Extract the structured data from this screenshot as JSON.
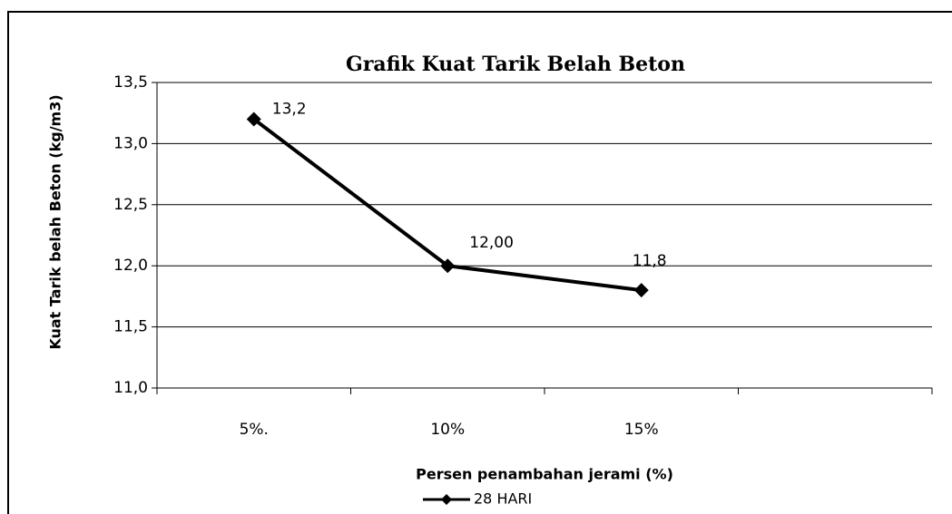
{
  "chart_data": {
    "type": "line",
    "title": "Grafik Kuat Tarik Belah Beton",
    "x_label": "Persen penambahan jerami (%)",
    "y_label": "Kuat Tarik belah Beton (kg/m3)",
    "categories": [
      "5%.",
      "10%",
      "15%",
      null
    ],
    "series": [
      {
        "name": "28 HARI",
        "color": "#000000",
        "values": [
          13.2,
          12.0,
          11.8,
          null
        ],
        "value_labels": [
          "13,2",
          "12,00",
          "11,8",
          null
        ]
      }
    ],
    "ylim": [
      11.0,
      13.5
    ],
    "yticks": [
      {
        "value": 11.0,
        "label": "11,0"
      },
      {
        "value": 11.5,
        "label": "11,5"
      },
      {
        "value": 12.0,
        "label": "12,0"
      },
      {
        "value": 12.5,
        "label": "12,5"
      },
      {
        "value": 13.0,
        "label": "13,0"
      },
      {
        "value": 13.5,
        "label": "13,5"
      }
    ],
    "grid": true,
    "legend": "bottom"
  }
}
